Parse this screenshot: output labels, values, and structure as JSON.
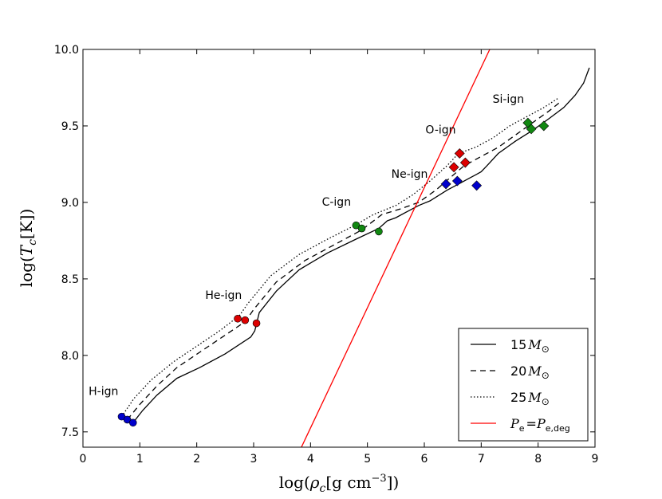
{
  "chart_data": {
    "type": "line",
    "title": "",
    "xlabel": "log(ρ_c [g cm^−3])",
    "ylabel": "log(T_c [K])",
    "xlim": [
      0,
      9
    ],
    "ylim": [
      7.4,
      10.0
    ],
    "xticks": [
      0,
      1,
      2,
      3,
      4,
      5,
      6,
      7,
      8,
      9
    ],
    "yticks": [
      7.5,
      8.0,
      8.5,
      9.0,
      9.5,
      10.0
    ],
    "xtick_labels": [
      "0",
      "1",
      "2",
      "3",
      "4",
      "5",
      "6",
      "7",
      "8",
      "9"
    ],
    "ytick_labels": [
      "7.5",
      "8.0",
      "8.5",
      "9.0",
      "9.5",
      "10.0"
    ],
    "grid": false,
    "legend_position": "bottom-right",
    "series": [
      {
        "name": "15M⊙",
        "label_number": "15",
        "style": "solid",
        "color": "#000000",
        "x": [
          0.88,
          1.05,
          1.3,
          1.65,
          2.05,
          2.5,
          2.95,
          3.02,
          3.1,
          3.4,
          3.8,
          4.3,
          4.8,
          5.2,
          5.35,
          5.5,
          5.7,
          5.9,
          6.1,
          6.4,
          6.6,
          6.8,
          6.9,
          7.0,
          7.1,
          7.3,
          7.6,
          7.9,
          8.2,
          8.45,
          8.65,
          8.8,
          8.9
        ],
        "y": [
          7.56,
          7.64,
          7.74,
          7.85,
          7.92,
          8.01,
          8.12,
          8.16,
          8.28,
          8.42,
          8.56,
          8.67,
          8.76,
          8.83,
          8.88,
          8.9,
          8.94,
          8.98,
          9.01,
          9.08,
          9.12,
          9.16,
          9.18,
          9.2,
          9.24,
          9.32,
          9.4,
          9.47,
          9.55,
          9.62,
          9.7,
          9.78,
          9.88
        ]
      },
      {
        "name": "20M⊙",
        "label_number": "20",
        "style": "dashed",
        "color": "#000000",
        "x": [
          0.78,
          1.0,
          1.3,
          1.65,
          2.05,
          2.45,
          2.85,
          3.0,
          3.4,
          3.9,
          4.4,
          4.9,
          5.25,
          5.6,
          5.9,
          6.2,
          6.45,
          6.7,
          7.0,
          7.3,
          7.6,
          7.9,
          8.2,
          8.4
        ],
        "y": [
          7.58,
          7.68,
          7.8,
          7.92,
          8.02,
          8.12,
          8.22,
          8.3,
          8.48,
          8.62,
          8.72,
          8.82,
          8.92,
          8.96,
          9.0,
          9.08,
          9.16,
          9.24,
          9.3,
          9.36,
          9.44,
          9.52,
          9.6,
          9.66
        ]
      },
      {
        "name": "25M⊙",
        "label_number": "25",
        "style": "dotted",
        "color": "#000000",
        "x": [
          0.68,
          0.9,
          1.2,
          1.6,
          2.0,
          2.4,
          2.75,
          2.9,
          3.3,
          3.8,
          4.3,
          4.78,
          5.1,
          5.5,
          5.8,
          6.1,
          6.4,
          6.6,
          6.9,
          7.2,
          7.5,
          7.8,
          8.1,
          8.35
        ],
        "y": [
          7.6,
          7.72,
          7.84,
          7.96,
          8.06,
          8.16,
          8.26,
          8.34,
          8.52,
          8.66,
          8.76,
          8.85,
          8.92,
          8.98,
          9.05,
          9.14,
          9.24,
          9.32,
          9.36,
          9.42,
          9.5,
          9.56,
          9.62,
          9.68
        ]
      },
      {
        "name": "P_e = P_e,deg",
        "style": "solid",
        "color": "#ff0000",
        "x": [
          3.84,
          7.15
        ],
        "y": [
          7.4,
          10.0
        ]
      }
    ],
    "markers": [
      {
        "phase": "H-ign",
        "shape": "circle",
        "color": "#0000cc",
        "x": 0.68,
        "y": 7.6
      },
      {
        "phase": "H-ign",
        "shape": "circle",
        "color": "#0000cc",
        "x": 0.78,
        "y": 7.58
      },
      {
        "phase": "H-ign",
        "shape": "circle",
        "color": "#0000cc",
        "x": 0.88,
        "y": 7.56
      },
      {
        "phase": "He-ign",
        "shape": "circle",
        "color": "#dd0000",
        "x": 2.72,
        "y": 8.24
      },
      {
        "phase": "He-ign",
        "shape": "circle",
        "color": "#dd0000",
        "x": 2.85,
        "y": 8.23
      },
      {
        "phase": "He-ign",
        "shape": "circle",
        "color": "#dd0000",
        "x": 3.05,
        "y": 8.21
      },
      {
        "phase": "C-ign",
        "shape": "circle",
        "color": "#118811",
        "x": 4.8,
        "y": 8.85
      },
      {
        "phase": "C-ign",
        "shape": "circle",
        "color": "#118811",
        "x": 4.9,
        "y": 8.83
      },
      {
        "phase": "C-ign",
        "shape": "circle",
        "color": "#118811",
        "x": 5.2,
        "y": 8.81
      },
      {
        "phase": "Ne-ign",
        "shape": "diamond",
        "color": "#0000cc",
        "x": 6.38,
        "y": 9.12
      },
      {
        "phase": "Ne-ign",
        "shape": "diamond",
        "color": "#0000cc",
        "x": 6.58,
        "y": 9.14
      },
      {
        "phase": "Ne-ign",
        "shape": "diamond",
        "color": "#0000cc",
        "x": 6.92,
        "y": 9.11
      },
      {
        "phase": "O-ign",
        "shape": "diamond",
        "color": "#dd0000",
        "x": 6.52,
        "y": 9.23
      },
      {
        "phase": "O-ign",
        "shape": "diamond",
        "color": "#dd0000",
        "x": 6.62,
        "y": 9.32
      },
      {
        "phase": "O-ign",
        "shape": "diamond",
        "color": "#dd0000",
        "x": 6.72,
        "y": 9.26
      },
      {
        "phase": "Si-ign",
        "shape": "diamond",
        "color": "#118811",
        "x": 7.82,
        "y": 9.52
      },
      {
        "phase": "Si-ign",
        "shape": "diamond",
        "color": "#118811",
        "x": 7.88,
        "y": 9.48
      },
      {
        "phase": "Si-ign",
        "shape": "diamond",
        "color": "#118811",
        "x": 8.1,
        "y": 9.5
      }
    ],
    "annotations": [
      {
        "text": "H-ign",
        "x": 0.1,
        "y": 7.74
      },
      {
        "text": "He-ign",
        "x": 2.15,
        "y": 8.37
      },
      {
        "text": "C-ign",
        "x": 4.2,
        "y": 8.98
      },
      {
        "text": "Ne-ign",
        "x": 5.42,
        "y": 9.16
      },
      {
        "text": "O-ign",
        "x": 6.02,
        "y": 9.45
      },
      {
        "text": "Si-ign",
        "x": 7.2,
        "y": 9.65
      }
    ]
  }
}
